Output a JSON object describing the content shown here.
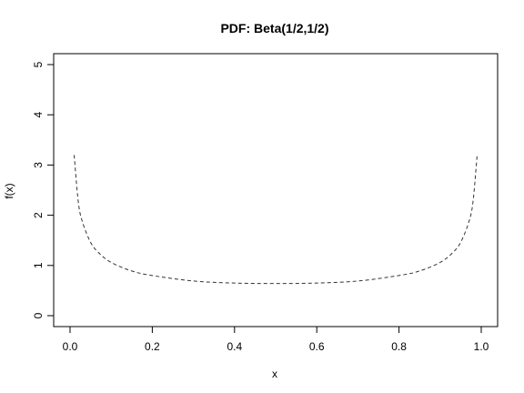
{
  "chart_data": {
    "type": "line",
    "title": "PDF: Beta(1/2,1/2)",
    "xlabel": "x",
    "ylabel": "f(x)",
    "xlim": [
      0.01,
      0.99
    ],
    "ylim": [
      0,
      5
    ],
    "x_ticks": [
      "0.0",
      "0.2",
      "0.4",
      "0.6",
      "0.8",
      "1.0"
    ],
    "y_ticks": [
      "0",
      "1",
      "2",
      "3",
      "4",
      "5"
    ],
    "grid": false,
    "series": [
      {
        "line_style": "dashed",
        "color": "#333333",
        "x": [
          0.01,
          0.02,
          0.03,
          0.05,
          0.07,
          0.1,
          0.15,
          0.2,
          0.3,
          0.4,
          0.5,
          0.6,
          0.7,
          0.8,
          0.85,
          0.9,
          0.93,
          0.95,
          0.97,
          0.98,
          0.99
        ],
        "y": [
          3.2,
          2.27,
          1.87,
          1.46,
          1.25,
          1.06,
          0.89,
          0.8,
          0.69,
          0.65,
          0.64,
          0.65,
          0.69,
          0.8,
          0.89,
          1.06,
          1.25,
          1.46,
          1.87,
          2.27,
          3.2
        ]
      }
    ]
  }
}
